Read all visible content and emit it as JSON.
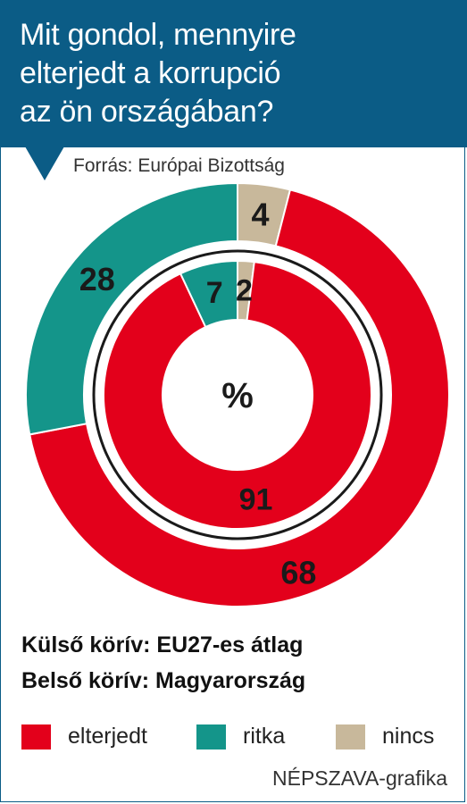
{
  "header": {
    "title_lines": [
      "Mit gondol, mennyire",
      "elterjedt a korrupció",
      "az ön országában?"
    ]
  },
  "source": "Forrás: Európai Bizottság",
  "center_label": "%",
  "legend": {
    "outer_ring": "Külső körív: EU27-es átlag",
    "inner_ring": "Belső körív: Magyarország",
    "items": [
      {
        "label": "elterjedt",
        "color": "#e3001b"
      },
      {
        "label": "ritka",
        "color": "#14958a"
      },
      {
        "label": "nincs",
        "color": "#c8b89b"
      }
    ]
  },
  "credit": "NÉPSZAVA-grafika",
  "chart_data": {
    "type": "pie",
    "variant": "nested-donut",
    "title": "Mit gondol, mennyire elterjedt a korrupció az ön országában?",
    "unit": "%",
    "categories": [
      "elterjedt",
      "ritka",
      "nincs"
    ],
    "colors": [
      "#e3001b",
      "#14958a",
      "#c8b89b"
    ],
    "series": [
      {
        "name": "Külső körív: EU27-es átlag",
        "values": [
          68,
          28,
          4
        ],
        "labels": [
          "68",
          "28",
          "4"
        ]
      },
      {
        "name": "Belső körív: Magyarország",
        "values": [
          91,
          7,
          2
        ],
        "labels": [
          "91",
          "7",
          "2"
        ]
      }
    ]
  }
}
